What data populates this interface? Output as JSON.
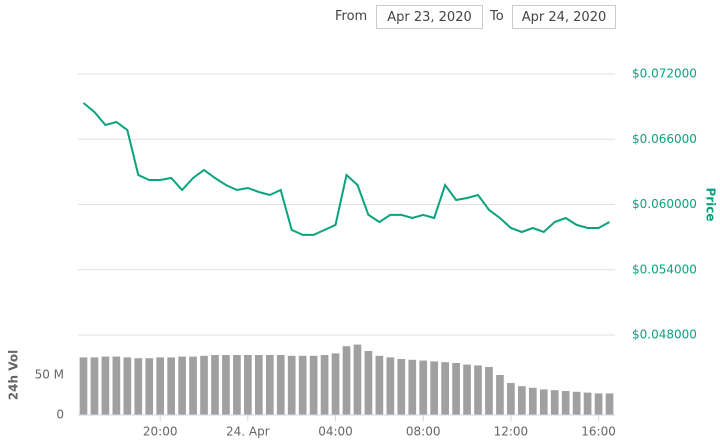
{
  "range": {
    "from_label": "From",
    "from": "Apr 23, 2020",
    "to_label": "To",
    "to": "Apr 24, 2020"
  },
  "chart_data": [
    {
      "type": "line",
      "ylabel": "Price",
      "color": "#0aa37e",
      "grid": true,
      "x": [
        16.5,
        17,
        17.5,
        18,
        18.5,
        19,
        19.5,
        20,
        20.5,
        21,
        21.5,
        22,
        22.5,
        23,
        23.5,
        24,
        24.5,
        25,
        25.5,
        26,
        26.5,
        27,
        27.5,
        28,
        28.5,
        29,
        29.5,
        30,
        30.5,
        31,
        31.5,
        32,
        32.5,
        33,
        33.5,
        34,
        34.5,
        35,
        35.5,
        36,
        36.5,
        37,
        37.5,
        38,
        38.5,
        39,
        39.5,
        40,
        40.5
      ],
      "values": [
        0.06933,
        0.06851,
        0.06731,
        0.06759,
        0.06685,
        0.06271,
        0.06225,
        0.06225,
        0.06244,
        0.06133,
        0.06244,
        0.06317,
        0.06244,
        0.06179,
        0.06133,
        0.06152,
        0.06115,
        0.06087,
        0.06133,
        0.05766,
        0.0572,
        0.0572,
        0.05766,
        0.05812,
        0.06271,
        0.06179,
        0.05904,
        0.05839,
        0.05904,
        0.05904,
        0.05876,
        0.05904,
        0.05876,
        0.06179,
        0.06041,
        0.0606,
        0.06087,
        0.0595,
        0.05876,
        0.05784,
        0.05747,
        0.05784,
        0.05747,
        0.05839,
        0.05876,
        0.05812,
        0.05784,
        0.05784,
        0.05839
      ],
      "xlim": [
        16.25,
        40.75
      ],
      "ylim": [
        0.048,
        0.072
      ],
      "yticks": [
        {
          "value": 0.048,
          "label": "$0.048000"
        },
        {
          "value": 0.054,
          "label": "$0.054000"
        },
        {
          "value": 0.06,
          "label": "$0.060000"
        },
        {
          "value": 0.066,
          "label": "$0.066000"
        },
        {
          "value": 0.072,
          "label": "$0.072000"
        }
      ]
    },
    {
      "type": "bar",
      "ylabel": "24h Vol",
      "color": "#a0a0a0",
      "x": [
        16.5,
        17,
        17.5,
        18,
        18.5,
        19,
        19.5,
        20,
        20.5,
        21,
        21.5,
        22,
        22.5,
        23,
        23.5,
        24,
        24.5,
        25,
        25.5,
        26,
        26.5,
        27,
        27.5,
        28,
        28.5,
        29,
        29.5,
        30,
        30.5,
        31,
        31.5,
        32,
        32.5,
        33,
        33.5,
        34,
        34.5,
        35,
        35.5,
        36,
        36.5,
        37,
        37.5,
        38,
        38.5,
        39,
        39.5,
        40,
        40.5
      ],
      "values": [
        72000000,
        72000000,
        73000000,
        73000000,
        72000000,
        71000000,
        71000000,
        72000000,
        72000000,
        73000000,
        73000000,
        74000000,
        75000000,
        75000000,
        75000000,
        75000000,
        75000000,
        75000000,
        75000000,
        74000000,
        74000000,
        74000000,
        75000000,
        77000000,
        86000000,
        88000000,
        80000000,
        74000000,
        72000000,
        70000000,
        69000000,
        68000000,
        67000000,
        66000000,
        65000000,
        63000000,
        62000000,
        60000000,
        50000000,
        40000000,
        36000000,
        34000000,
        32000000,
        31000000,
        30000000,
        29000000,
        28000000,
        27000000,
        27000000
      ],
      "xlim": [
        16.25,
        40.75
      ],
      "xticks": [
        {
          "value": 20,
          "label": "20:00"
        },
        {
          "value": 24,
          "label": "24. Apr"
        },
        {
          "value": 28,
          "label": "04:00"
        },
        {
          "value": 32,
          "label": "08:00"
        },
        {
          "value": 36,
          "label": "12:00"
        },
        {
          "value": 40,
          "label": "16:00"
        }
      ],
      "ylim": [
        0,
        100000000
      ],
      "yticks": [
        0,
        {
          "value": 50000000,
          "label": "50 M"
        }
      ]
    }
  ]
}
